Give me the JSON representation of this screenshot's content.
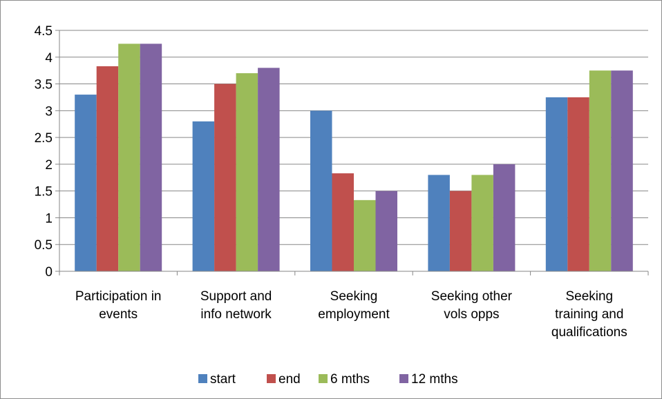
{
  "chart_data": {
    "type": "bar",
    "title": "",
    "xlabel": "",
    "ylabel": "",
    "ylim": [
      0,
      4.5
    ],
    "yticks": [
      "0",
      "0.5",
      "1",
      "1.5",
      "2",
      "2.5",
      "3",
      "3.5",
      "4",
      "4.5"
    ],
    "grid": true,
    "legend_position": "bottom",
    "categories": [
      [
        "Participation in",
        "events"
      ],
      [
        "Support and",
        "info network"
      ],
      [
        "Seeking",
        "employment"
      ],
      [
        "Seeking other",
        "vols opps"
      ],
      [
        "Seeking",
        "training and",
        "qualifications"
      ]
    ],
    "series": [
      {
        "name": "start",
        "color": "#4f81bd",
        "values": [
          3.3,
          2.8,
          3.0,
          1.8,
          3.25
        ]
      },
      {
        "name": "end",
        "color": "#c0504d",
        "values": [
          3.83,
          3.5,
          1.83,
          1.5,
          3.25
        ]
      },
      {
        "name": "6 mths",
        "color": "#9bbb59",
        "values": [
          4.25,
          3.7,
          1.33,
          1.8,
          3.75
        ]
      },
      {
        "name": "12 mths",
        "color": "#8064a2",
        "values": [
          4.25,
          3.8,
          1.5,
          2.0,
          3.75
        ]
      }
    ]
  }
}
